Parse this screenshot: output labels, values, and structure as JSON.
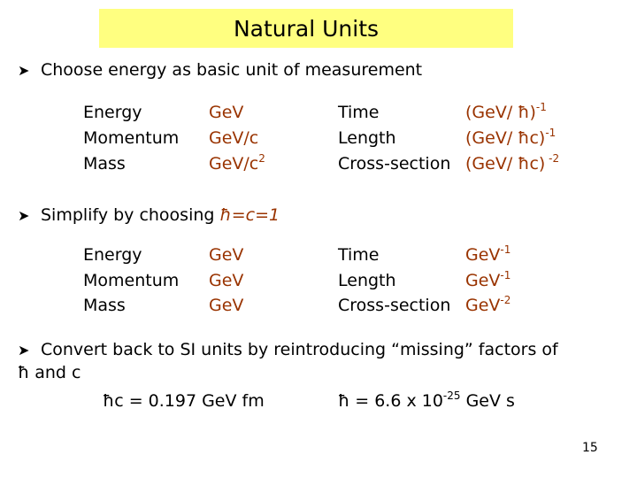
{
  "slide": {
    "title": "Natural Units",
    "bullet1": "Choose energy as basic unit of measurement",
    "table1": {
      "quantities": [
        "Energy",
        "Momentum",
        "Mass"
      ],
      "units": [
        {
          "base": "GeV",
          "sup": ""
        },
        {
          "base": "GeV/c",
          "sup": ""
        },
        {
          "base": "GeV/c",
          "sup": "2"
        }
      ],
      "derived": [
        "Time",
        "Length",
        "Cross-section"
      ],
      "derived_units": [
        {
          "base": "(GeV/ ħ)",
          "sup": "-1"
        },
        {
          "base": "(GeV/ ħc)",
          "sup": "-1"
        },
        {
          "base": "(GeV/ ħc)",
          "sup": " -2"
        }
      ]
    },
    "bullet2_prefix": "Simplify by choosing ",
    "bullet2_highlight": "ħ=c=1",
    "table2": {
      "quantities": [
        "Energy",
        "Momentum",
        "Mass"
      ],
      "units": [
        "GeV",
        "GeV",
        "GeV"
      ],
      "derived": [
        "Time",
        "Length",
        "Cross-section"
      ],
      "derived_units": [
        {
          "base": "GeV",
          "sup": "-1"
        },
        {
          "base": "GeV",
          "sup": "-1"
        },
        {
          "base": "GeV",
          "sup": "-2"
        }
      ]
    },
    "bullet3_line1": "Convert back to SI units by reintroducing “missing” factors of",
    "bullet3_line2": "ħ and c",
    "formula1": "ħc = 0.197 GeV fm",
    "formula2_base": "ħ = 6.6 x 10",
    "formula2_exp": "-25",
    "formula2_tail": " GeV s",
    "page_number": "15",
    "colors": {
      "highlight": "#ffff80",
      "accent": "#993300"
    },
    "icons": {
      "bullet": "arrow-bullet-icon"
    }
  }
}
